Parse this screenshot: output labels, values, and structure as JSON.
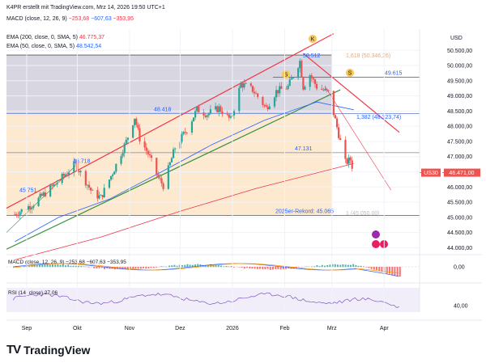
{
  "header": {
    "caption": "K4PR erstellt mit TradingView.com, Mrz 14, 2026 19:50 UTC+1",
    "macd_name": "MACD (close, 12, 26, 9)",
    "macd_v1": "−253,68",
    "macd_v2": "−607,63",
    "macd_v3": "−353,95",
    "ema200_name": "EMA (200, close, 0, SMA, 5)",
    "ema200_val": "46.775,37",
    "ema50_name": "EMA (50, close, 0, SMA, 5)",
    "ema50_val": "48.542,54"
  },
  "colors": {
    "up": "#26a69a",
    "down": "#ef5350",
    "ema200": "#f23645",
    "ema50": "#2962ff",
    "channel": "#f23645",
    "trend_green": "#388e3c",
    "box_orange": "#fde4c4",
    "box_gray": "#b8b4c8",
    "macd_line": "#2962ff",
    "signal_line": "#ff9800",
    "rsi_line": "#7e57c2"
  },
  "chart_data": {
    "type": "candlestick",
    "currency": "USD",
    "symbol": "US30",
    "last_price": "46.471,00",
    "x_ticks": [
      "Sep",
      "Okt",
      "Nov",
      "Dez",
      "2026",
      "Feb",
      "Mrz",
      "Apr"
    ],
    "y_ticks": [
      "50.500,00",
      "50.000,00",
      "49.500,00",
      "49.000,00",
      "48.500,00",
      "48.000,00",
      "47.500,00",
      "47.000,00",
      "46.500,00",
      "46.000,00",
      "45.500,00",
      "45.000,00",
      "44.500,00",
      "44.000,00"
    ],
    "ylim": [
      43850,
      51200
    ],
    "anchors": [
      [
        "2025-08-25",
        45100
      ],
      [
        "2025-09-05",
        45450
      ],
      [
        "2025-09-18",
        46100
      ],
      [
        "2025-09-30",
        46750
      ],
      [
        "2025-10-10",
        45800
      ],
      [
        "2025-10-15",
        45650
      ],
      [
        "2025-10-23",
        46600
      ],
      [
        "2025-10-30",
        47500
      ],
      [
        "2025-11-04",
        48300
      ],
      [
        "2025-11-07",
        47600
      ],
      [
        "2025-11-12",
        47100
      ],
      [
        "2025-11-18",
        46300
      ],
      [
        "2025-11-21",
        46050
      ],
      [
        "2025-11-28",
        47300
      ],
      [
        "2025-12-05",
        47900
      ],
      [
        "2025-12-11",
        48550
      ],
      [
        "2025-12-17",
        48400
      ],
      [
        "2025-12-24",
        48600
      ],
      [
        "2025-12-31",
        48200
      ],
      [
        "2026-01-06",
        49400
      ],
      [
        "2026-01-13",
        49200
      ],
      [
        "2026-01-21",
        48600
      ],
      [
        "2026-01-27",
        49150
      ],
      [
        "2026-02-03",
        49300
      ],
      [
        "2026-02-10",
        50150
      ],
      [
        "2026-02-12",
        49300
      ],
      [
        "2026-02-16",
        49700
      ],
      [
        "2026-02-20",
        49300
      ],
      [
        "2026-02-27",
        49100
      ],
      [
        "2026-03-03",
        48200
      ],
      [
        "2026-03-06",
        47500
      ],
      [
        "2026-03-09",
        46800
      ],
      [
        "2026-03-12",
        46900
      ],
      [
        "2026-03-14",
        46471
      ]
    ],
    "ema200": [
      [
        "2025-08-25",
        43600
      ],
      [
        "2025-10-15",
        44350
      ],
      [
        "2025-12-01",
        45200
      ],
      [
        "2026-01-15",
        45950
      ],
      [
        "2026-03-14",
        46775
      ]
    ],
    "ema50": [
      [
        "2025-08-25",
        44200
      ],
      [
        "2025-09-20",
        45000
      ],
      [
        "2025-10-20",
        45600
      ],
      [
        "2025-11-20",
        46500
      ],
      [
        "2025-12-20",
        47400
      ],
      [
        "2026-01-20",
        48200
      ],
      [
        "2026-02-20",
        48800
      ],
      [
        "2026-03-14",
        48542
      ]
    ],
    "levels": [
      {
        "label": "48.418",
        "value": 48418
      },
      {
        "label": "47.131",
        "value": 47131
      },
      {
        "label": "45.751",
        "value": 45751
      },
      {
        "label": "46.718",
        "value": 46718
      },
      {
        "label": "2025er-Rekord: 45.065",
        "value": 45065
      },
      {
        "label": "49.615",
        "value": 49615
      },
      {
        "label": "50.512",
        "value": 50512
      },
      {
        "label": "1,618 (50.346,26)",
        "value": 50346
      },
      {
        "label": "1,382 (48.323,74)",
        "value": 48324
      },
      {
        "label": "1 (45.050,00)",
        "value": 45050
      }
    ],
    "markers": [
      "K",
      "S",
      "S"
    ],
    "macd_tick": "0,00",
    "rsi_tick": "40,00",
    "rsi_label": "RSI (14, close)",
    "rsi_value": "27,06"
  },
  "brand": {
    "name": "TradingView",
    "logo": "TV"
  }
}
